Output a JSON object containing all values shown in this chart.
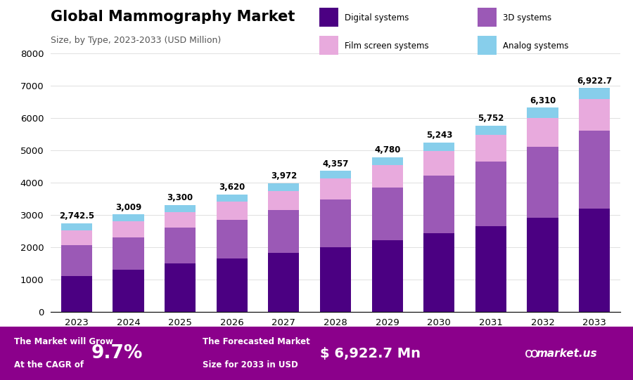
{
  "title": "Global Mammography Market",
  "subtitle": "Size, by Type, 2023-2033 (USD Million)",
  "years": [
    2023,
    2024,
    2025,
    2026,
    2027,
    2028,
    2029,
    2030,
    2031,
    2032,
    2033
  ],
  "totals": [
    2742.5,
    3009,
    3300,
    3620,
    3972,
    4357,
    4780,
    5243,
    5752,
    6310,
    6922.7
  ],
  "digital_systems": [
    1100,
    1300,
    1500,
    1650,
    1820,
    2000,
    2200,
    2420,
    2650,
    2900,
    3180
  ],
  "three_d_systems": [
    950,
    1000,
    1100,
    1200,
    1320,
    1470,
    1630,
    1800,
    2000,
    2200,
    2430
  ],
  "film_screen_systems": [
    470,
    490,
    490,
    550,
    600,
    650,
    700,
    760,
    820,
    900,
    980
  ],
  "analog_systems": [
    222.5,
    219,
    210,
    220,
    232,
    237,
    250,
    263,
    282,
    310,
    332.7
  ],
  "color_digital": "#4B0082",
  "color_3d": "#9B59B6",
  "color_film": "#E8AADD",
  "color_analog": "#87CEEB",
  "ylim": [
    0,
    8000
  ],
  "yticks": [
    0,
    1000,
    2000,
    3000,
    4000,
    5000,
    6000,
    7000,
    8000
  ],
  "footer_text1a": "The Market will Grow",
  "footer_text1b": "At the CAGR of",
  "footer_cagr": "9.7%",
  "footer_text2a": "The Forecasted Market",
  "footer_text2b": "Size for 2033 in USD",
  "footer_value": "$ 6,922.7 Mn",
  "footer_brand": "market.us",
  "footer_bg": "#8B008B",
  "bg_color": "#FFFFFF",
  "legend_labels": [
    "Digital systems",
    "3D systems",
    "Film screen systems",
    "Analog systems"
  ]
}
